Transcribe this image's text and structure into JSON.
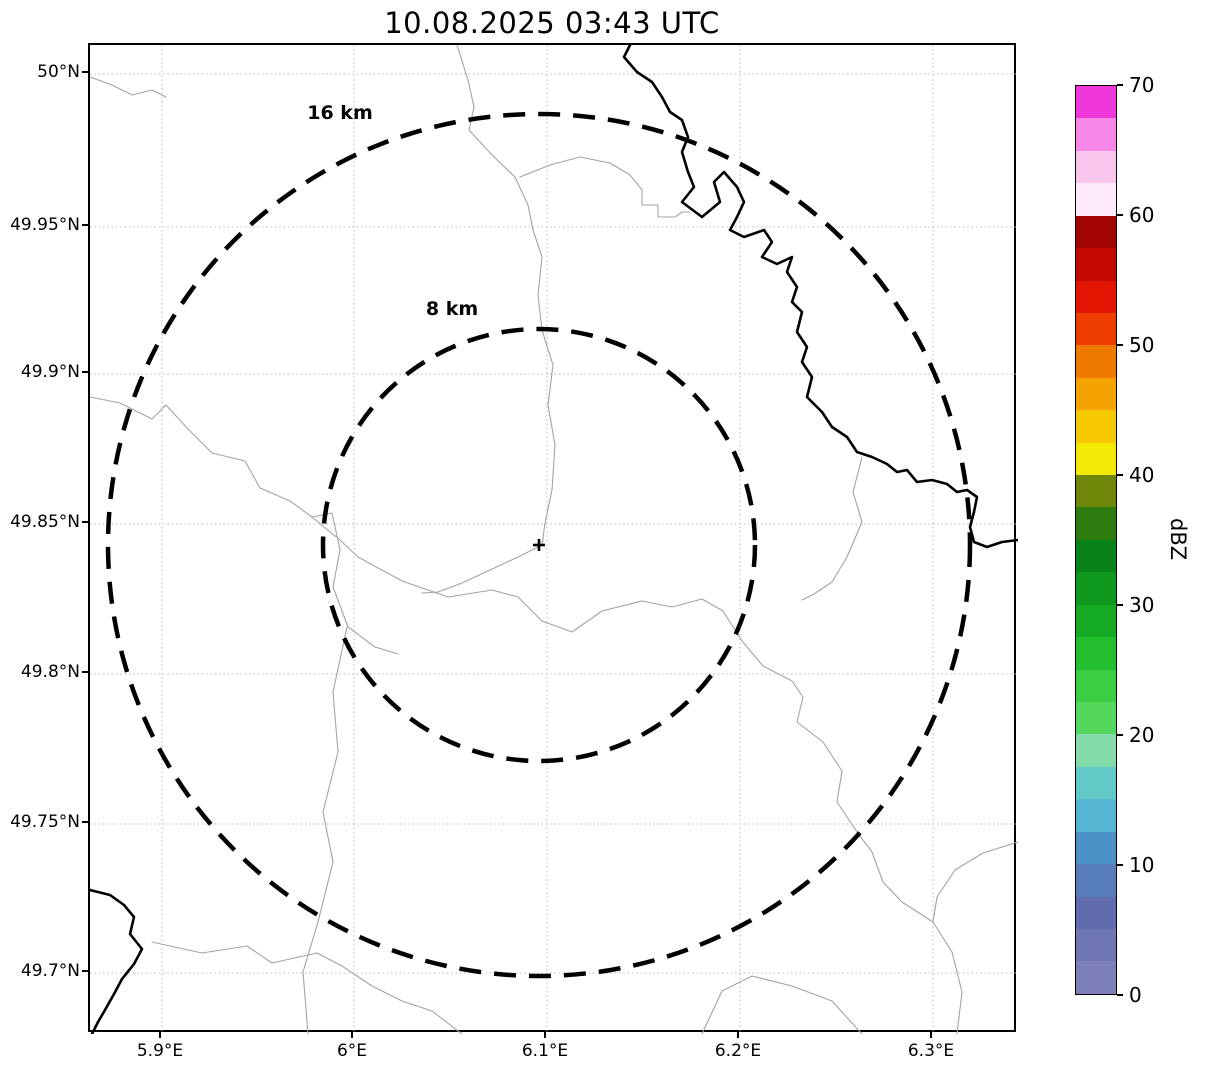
{
  "title": "10.08.2025 03:43 UTC",
  "map": {
    "outer_ring_label": "16 km",
    "inner_ring_label": "8 km"
  },
  "axes": {
    "x_ticks": [
      "5.9°E",
      "6°E",
      "6.1°E",
      "6.2°E",
      "6.3°E"
    ],
    "y_ticks": [
      "50°N",
      "49.95°N",
      "49.9°N",
      "49.85°N",
      "49.8°N",
      "49.75°N",
      "49.7°N"
    ]
  },
  "colorbar": {
    "axis_label": "dBZ",
    "tick_labels": [
      "70",
      "60",
      "50",
      "40",
      "30",
      "20",
      "10",
      "0"
    ],
    "value_range": [
      0,
      70
    ],
    "segment_colors_bottom_to_top": [
      "#7d80b8",
      "#7076b3",
      "#606cae",
      "#567cba",
      "#4c92c6",
      "#55b5d2",
      "#61c9c6",
      "#85dcab",
      "#55d65c",
      "#3ace42",
      "#24bf2e",
      "#16ab24",
      "#0e981d",
      "#078216",
      "#2e7c10",
      "#6e8709",
      "#f2ea05",
      "#f6c903",
      "#f4a303",
      "#ef7a00",
      "#ee3d00",
      "#e31400",
      "#c20800",
      "#a00300",
      "#fdeaf8",
      "#f9c6ee",
      "#f787e6",
      "#ef37da"
    ]
  },
  "chart_data": {
    "type": "map",
    "title": "10.08.2025 03:43 UTC",
    "x_axis_ticks": [
      "5.9°E",
      "6°E",
      "6.1°E",
      "6.2°E",
      "6.3°E"
    ],
    "y_axis_ticks": [
      "50°N",
      "49.95°N",
      "49.9°N",
      "49.85°N",
      "49.8°N",
      "49.75°N",
      "49.7°N"
    ],
    "range_rings_km": [
      8,
      16
    ],
    "colorbar": {
      "label": "dBZ",
      "min": 0,
      "max": 70,
      "tick_step": 10
    },
    "radar_echoes": "none visible"
  }
}
